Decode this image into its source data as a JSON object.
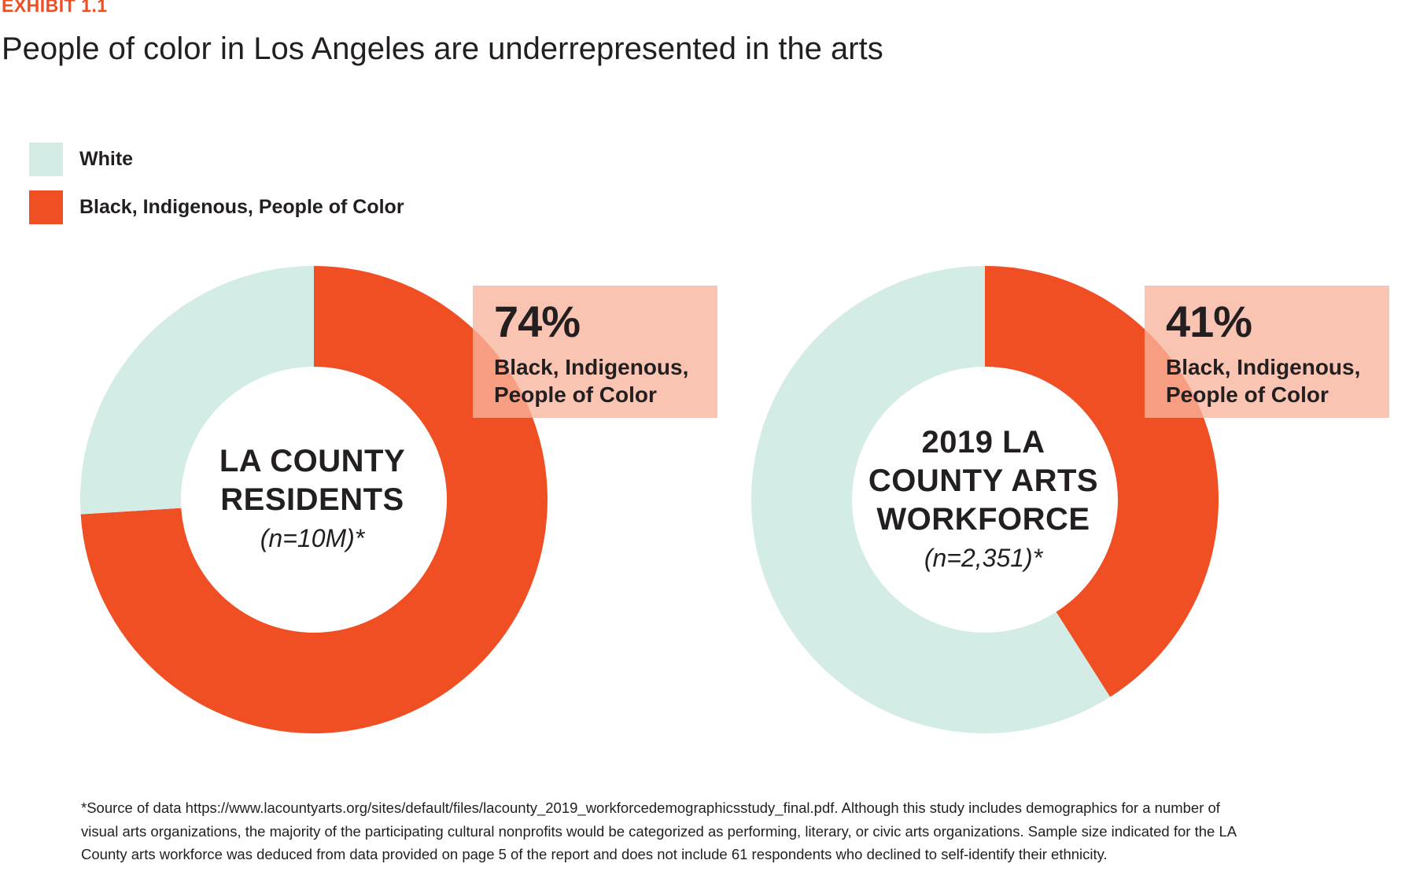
{
  "header": {
    "exhibit": "EXHIBIT 1.1",
    "title": "People of color in Los Angeles are underrepresented in the arts"
  },
  "legend": [
    {
      "label": "White",
      "color": "#d3ece6"
    },
    {
      "label": "Black, Indigenous, People of Color",
      "color": "#f04e23"
    }
  ],
  "chart_data": [
    {
      "type": "pie",
      "hole": true,
      "center_title": "LA COUNTY\nRESIDENTS",
      "center_n": "(n=10M)*",
      "callout_pct": "74%",
      "callout_label": "Black, Indigenous,\nPeople of Color",
      "slices": [
        {
          "label": "Black, Indigenous, People of Color",
          "value": 74,
          "color": "#f04e23"
        },
        {
          "label": "White",
          "value": 26,
          "color": "#d3ece6"
        }
      ]
    },
    {
      "type": "pie",
      "hole": true,
      "center_title": "2019 LA\nCOUNTY ARTS\nWORKFORCE",
      "center_n": "(n=2,351)*",
      "callout_pct": "41%",
      "callout_label": "Black, Indigenous,\nPeople of Color",
      "slices": [
        {
          "label": "Black, Indigenous, People of Color",
          "value": 41,
          "color": "#f04e23"
        },
        {
          "label": "White",
          "value": 59,
          "color": "#d3ece6"
        }
      ]
    }
  ],
  "footnote": "*Source of data https://www.lacountyarts.org/sites/default/files/lacounty_2019_workforcedemographicsstudy_final.pdf. Although this study includes demographics for a number of visual arts organizations, the majority of the participating cultural nonprofits would be categorized as performing, literary, or civic arts organizations. Sample size indicated for the LA County arts workforce was deduced from data provided on page 5 of the report and does not include 61 respondents who declined to self-identify their ethnicity."
}
